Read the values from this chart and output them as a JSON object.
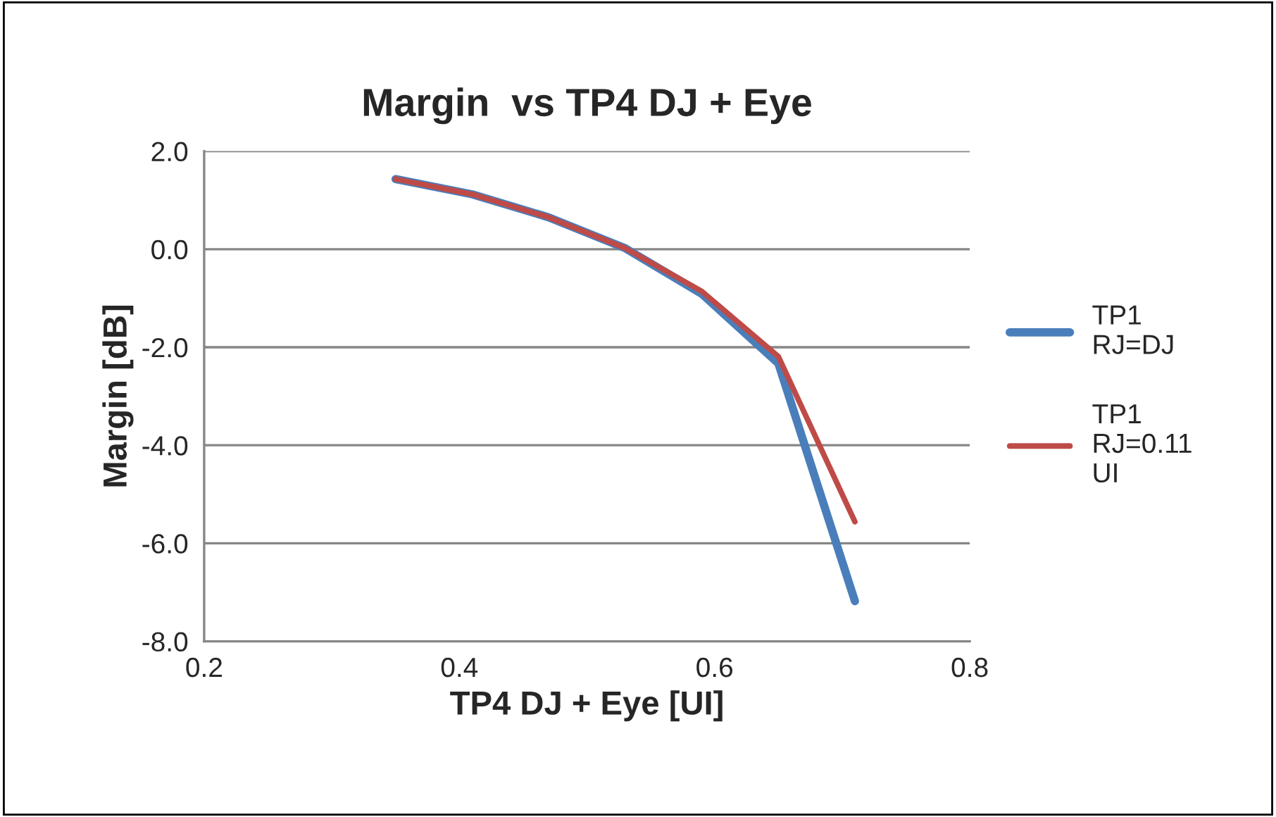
{
  "chart_data": {
    "type": "line",
    "title": "Margin  vs TP4 DJ + Eye",
    "xlabel": "TP4 DJ + Eye [UI]",
    "ylabel": "Margin [dB]",
    "x": [
      0.35,
      0.41,
      0.47,
      0.53,
      0.59,
      0.65,
      0.71
    ],
    "series": [
      {
        "name": "TP1\nRJ=DJ",
        "color": "#4a7ebb",
        "values": [
          1.43,
          1.12,
          0.65,
          0.02,
          -0.91,
          -2.33,
          -7.18
        ]
      },
      {
        "name": "TP1\nRJ=0.11\nUI",
        "color": "#be4b48",
        "values": [
          1.43,
          1.12,
          0.65,
          0.02,
          -0.86,
          -2.19,
          -5.56
        ]
      }
    ],
    "xlim": [
      0.2,
      0.8
    ],
    "xticks": [
      {
        "value": 0.2,
        "label": "0.2"
      },
      {
        "value": 0.4,
        "label": "0.4"
      },
      {
        "value": 0.6,
        "label": "0.6"
      },
      {
        "value": 0.8,
        "label": "0.8"
      }
    ],
    "ylim": [
      -8.0,
      2.0
    ],
    "yticks": [
      {
        "value": -8,
        "label": "-8.0"
      },
      {
        "value": -6,
        "label": "-6.0"
      },
      {
        "value": -4,
        "label": "-4.0"
      },
      {
        "value": -2,
        "label": "-2.0"
      },
      {
        "value": 0,
        "label": "0.0"
      },
      {
        "value": 2,
        "label": "2.0"
      }
    ],
    "grid": "y",
    "legend": "right",
    "marker": "none",
    "line_style": "solid"
  }
}
